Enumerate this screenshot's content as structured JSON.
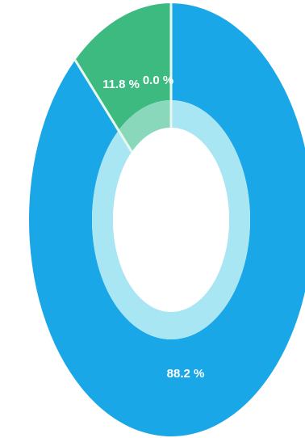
{
  "chart_data": {
    "type": "pie",
    "categories": [
      "",
      "",
      ""
    ],
    "values": [
      88.2,
      11.8,
      0.0
    ],
    "labels": [
      "88.2 %",
      "11.8 %",
      "0.0 %"
    ],
    "colors": [
      "#1aa7e8",
      "#3dba7f",
      "#2fb3a0"
    ],
    "inner_ring_colors": [
      "#a9e6f4",
      "#8ad8bb",
      "#8ad8bb"
    ],
    "hole_color": "#ffffff",
    "separator_color": "#e6f7ee",
    "legend": "none"
  }
}
